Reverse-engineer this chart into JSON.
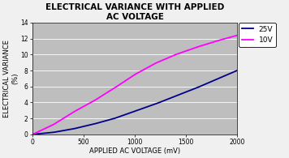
{
  "title": "ELECTRICAL VARIANCE WITH APPLIED\nAC VOLTAGE",
  "xlabel": "APPLIED AC VOLTAGE (mV)",
  "ylabel": "ELECTRICAL VARIANCE\n(%)",
  "xlim": [
    0,
    2000
  ],
  "ylim": [
    0,
    14
  ],
  "xticks": [
    0,
    500,
    1000,
    1500,
    2000
  ],
  "yticks": [
    0,
    2,
    4,
    6,
    8,
    10,
    12,
    14
  ],
  "plot_bg_color": "#bebebe",
  "figure_bg_color": "#f0f0f0",
  "line_25V": {
    "x": [
      0,
      200,
      400,
      600,
      800,
      1000,
      1200,
      1400,
      1600,
      1800,
      2000
    ],
    "y": [
      0,
      0.25,
      0.7,
      1.3,
      2.0,
      2.9,
      3.8,
      4.8,
      5.8,
      6.9,
      8.0
    ],
    "color": "#00008B",
    "label": "25V",
    "linewidth": 1.3
  },
  "line_10V": {
    "x": [
      0,
      200,
      400,
      600,
      800,
      1000,
      1200,
      1400,
      1600,
      1800,
      2000
    ],
    "y": [
      0,
      1.2,
      2.8,
      4.2,
      5.8,
      7.5,
      8.9,
      10.0,
      10.9,
      11.7,
      12.4
    ],
    "color": "#FF00FF",
    "label": "10V",
    "linewidth": 1.3
  },
  "title_fontsize": 7.5,
  "axis_label_fontsize": 6.0,
  "tick_fontsize": 5.5,
  "legend_fontsize": 6.5,
  "grid_color": "#ffffff",
  "grid_linewidth": 0.6
}
